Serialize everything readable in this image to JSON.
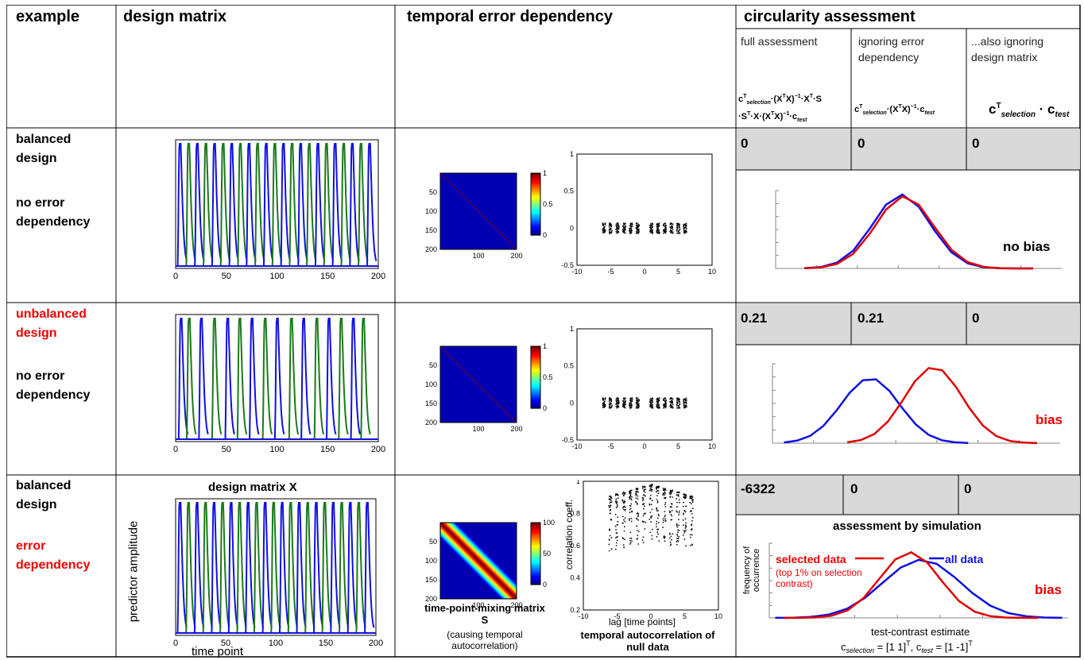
{
  "header": {
    "example": "example",
    "design_matrix": "design matrix",
    "temporal": "temporal error dependency",
    "circularity": "circularity assessment",
    "sub1": "full assessment",
    "sub2": "ignoring error dependency",
    "sub3": "...also ignoring design matrix"
  },
  "rows": [
    {
      "design": "balanced design",
      "dependency": "no error dependency",
      "v1": "0",
      "v2": "0",
      "v3": "0",
      "result": "no bias"
    },
    {
      "design": "unbalanced design",
      "dependency": "no error dependency",
      "v1": "0.21",
      "v2": "0.21",
      "v3": "0",
      "result": "bias"
    },
    {
      "design": "balanced design",
      "dependency": "error dependency",
      "v1": "-6322",
      "v2": "0",
      "v3": "0",
      "result": "bias"
    }
  ],
  "row3_extra": {
    "dm_title": "design matrix X",
    "dm_ylabel": "predictor amplitude",
    "dm_xlabel": "time point",
    "mix_title": "time-point-mixing matrix S",
    "mix_caption": "(causing temporal autocorrelation)",
    "ac_ylabel": "correlation coeff.",
    "ac_xlabel": "lag [time points]",
    "ac_caption": "temporal autocorrelation of null data",
    "sim_title": "assessment by simulation",
    "sim_ylabel": "frequency of occurrence",
    "selected": "selected data",
    "selected_note": "(top 1% on selection contrast)",
    "all": "all data",
    "sim_xlabel": "test-contrast estimate"
  },
  "colors": {
    "blue": "#1010e0",
    "green": "#1a7a1a",
    "red": "#e00000",
    "grid": "#d9d9d9"
  }
}
